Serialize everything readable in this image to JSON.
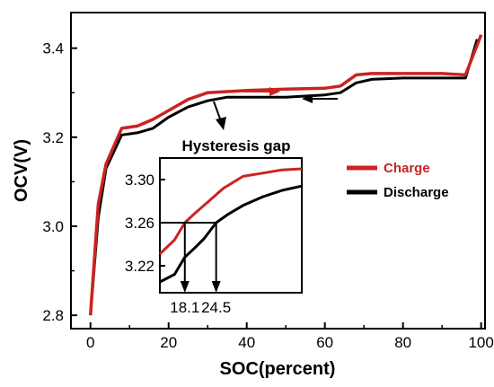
{
  "chart_data": [
    {
      "type": "line",
      "title": "",
      "xlabel": "SOC(percent)",
      "ylabel": "OCV(V)",
      "xlim": [
        -5,
        101
      ],
      "ylim": [
        2.77,
        3.48
      ],
      "xticks": [
        0,
        20,
        40,
        60,
        80,
        100
      ],
      "yticks": [
        2.8,
        3.0,
        3.2,
        3.4
      ],
      "xtick_labels": [
        "0",
        "20",
        "40",
        "60",
        "80",
        "100"
      ],
      "ytick_labels": [
        "2.8",
        "3.0",
        "3.2",
        "3.4"
      ],
      "legend_position": "right",
      "series": [
        {
          "name": "Charge",
          "color": "#cc2222",
          "x": [
            0,
            2,
            4,
            8,
            12,
            16,
            20,
            25,
            30,
            40,
            50,
            60,
            64,
            68,
            72,
            80,
            90,
            96,
            100
          ],
          "y": [
            2.8,
            3.05,
            3.14,
            3.22,
            3.225,
            3.24,
            3.26,
            3.285,
            3.3,
            3.305,
            3.308,
            3.31,
            3.315,
            3.34,
            3.343,
            3.343,
            3.343,
            3.34,
            3.43
          ]
        },
        {
          "name": "Discharge",
          "color": "#000000",
          "x": [
            0,
            2,
            4,
            8,
            12,
            16,
            20,
            25,
            30,
            35,
            40,
            50,
            60,
            64,
            68,
            72,
            80,
            90,
            96,
            99
          ],
          "y": [
            2.8,
            3.02,
            3.13,
            3.205,
            3.21,
            3.22,
            3.245,
            3.268,
            3.282,
            3.29,
            3.29,
            3.29,
            3.295,
            3.3,
            3.322,
            3.33,
            3.333,
            3.333,
            3.333,
            3.42
          ]
        }
      ],
      "annotations": {
        "arrow_labels": []
      }
    },
    {
      "type": "line",
      "title": "Hysteresis gap",
      "xlim": [
        13,
        42
      ],
      "ylim": [
        3.195,
        3.32
      ],
      "ytick_labels": [
        "3.30",
        "3.26",
        "3.22"
      ],
      "yticks": [
        3.3,
        3.26,
        3.22
      ],
      "markers": [
        {
          "label": "18.1",
          "x": 18.1
        },
        {
          "label": "24.5",
          "x": 24.5
        }
      ],
      "reference_y": 3.26,
      "series": [
        {
          "name": "Charge",
          "color": "#cc2222",
          "x": [
            13,
            16,
            18.1,
            20,
            23,
            26,
            30,
            34,
            38,
            42
          ],
          "y": [
            3.231,
            3.244,
            3.26,
            3.268,
            3.28,
            3.292,
            3.303,
            3.306,
            3.309,
            3.31
          ]
        },
        {
          "name": "Discharge",
          "color": "#000000",
          "x": [
            13,
            16,
            18.1,
            20,
            22,
            24.5,
            27,
            30,
            34,
            38,
            42
          ],
          "y": [
            3.205,
            3.212,
            3.228,
            3.236,
            3.245,
            3.26,
            3.268,
            3.276,
            3.284,
            3.29,
            3.294
          ]
        }
      ]
    }
  ]
}
